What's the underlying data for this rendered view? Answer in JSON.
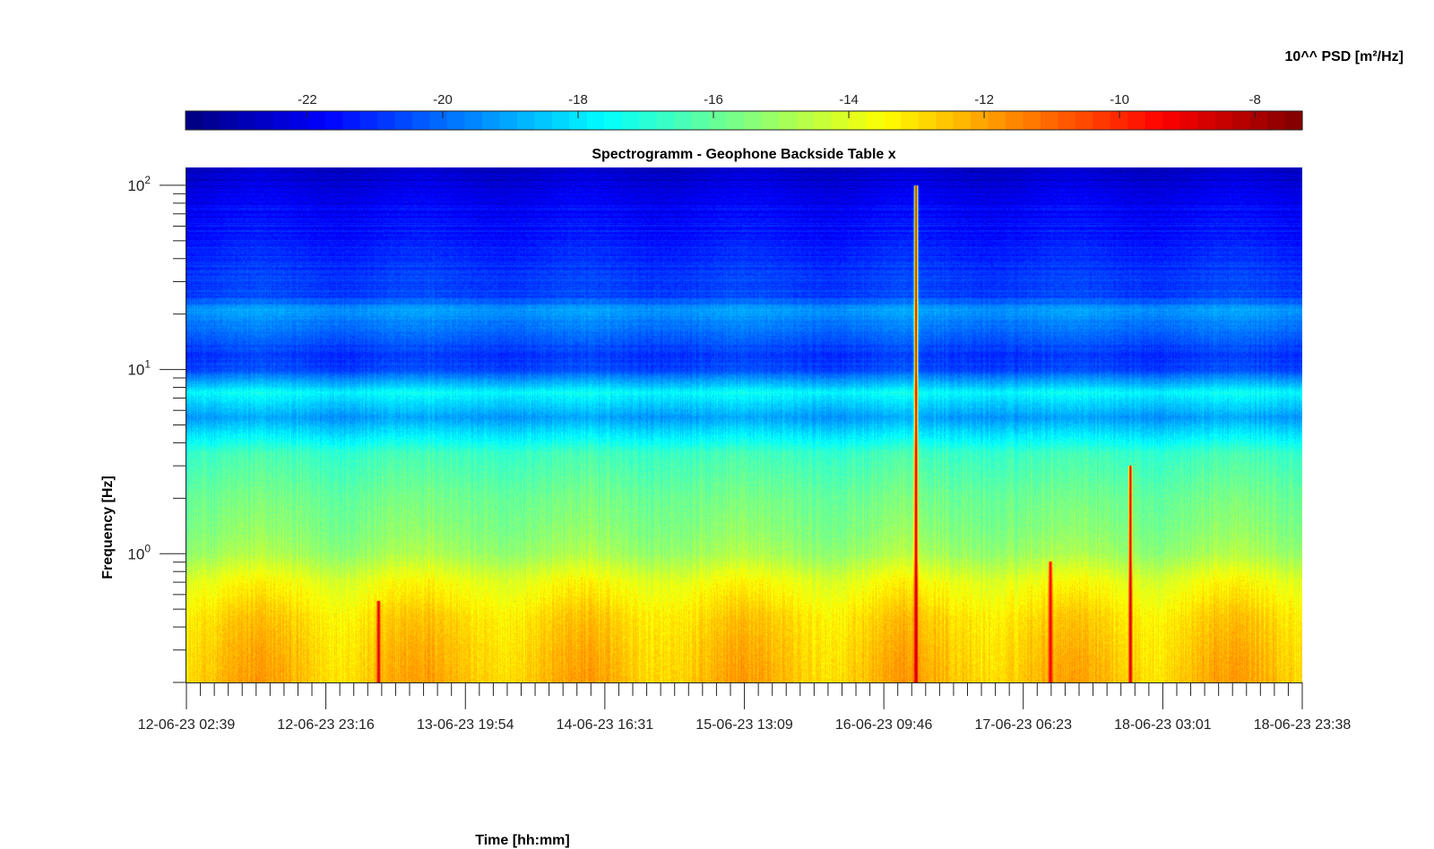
{
  "chart_data": {
    "type": "heatmap",
    "title": "Spectrogramm - Geophone Backside Table x",
    "xlabel": "Time [hh:mm]",
    "ylabel": "Frequency [Hz]",
    "colorbar_label": "10^^ PSD [m²/Hz]",
    "colormap": "jet",
    "clim": [
      -23.8,
      -7.3
    ],
    "colorbar_ticks": [
      "-22",
      "-20",
      "-18",
      "-16",
      "-14",
      "-12",
      "-10",
      "-8"
    ],
    "y_scale": "log",
    "ylim": [
      0.2,
      125
    ],
    "y_ticks": [
      {
        "base": "10",
        "exp": "2",
        "value": 100
      },
      {
        "base": "10",
        "exp": "1",
        "value": 10
      },
      {
        "base": "10",
        "exp": "0",
        "value": 1
      }
    ],
    "x_range": [
      "12-06-23 02:39",
      "18-06-23 23:38"
    ],
    "x_ticks": [
      "12-06-23 02:39",
      "12-06-23 23:16",
      "13-06-23 19:54",
      "14-06-23 16:31",
      "15-06-23 13:09",
      "16-06-23 09:46",
      "17-06-23 06:23",
      "18-06-23 03:01",
      "18-06-23 23:38"
    ],
    "band_profile": [
      {
        "freq": 125,
        "psd": -22.6
      },
      {
        "freq": 100,
        "psd": -22.3
      },
      {
        "freq": 70,
        "psd": -21.7
      },
      {
        "freq": 40,
        "psd": -21.0
      },
      {
        "freq": 25,
        "psd": -20.6
      },
      {
        "freq": 21,
        "psd": -19.2
      },
      {
        "freq": 15,
        "psd": -20.2
      },
      {
        "freq": 12,
        "psd": -20.9
      },
      {
        "freq": 10,
        "psd": -20.6
      },
      {
        "freq": 7.5,
        "psd": -17.6
      },
      {
        "freq": 5.5,
        "psd": -19.2
      },
      {
        "freq": 3.5,
        "psd": -16.6
      },
      {
        "freq": 2,
        "psd": -15.8
      },
      {
        "freq": 1.3,
        "psd": -15.4
      },
      {
        "freq": 1,
        "psd": -15.0
      },
      {
        "freq": 0.7,
        "psd": -13.7
      },
      {
        "freq": 0.45,
        "psd": -12.9
      },
      {
        "freq": 0.3,
        "psd": -12.6
      },
      {
        "freq": 0.2,
        "psd": -12.4
      }
    ],
    "events": [
      {
        "time": "13-06-23 07:00",
        "psd": -8.5,
        "fmax": 0.55
      },
      {
        "time": "16-06-23 14:28",
        "psd": -7.8,
        "fmax": 100
      },
      {
        "time": "17-06-23 10:20",
        "psd": -8.6,
        "fmax": 0.9
      },
      {
        "time": "17-06-23 22:10",
        "psd": -8.2,
        "fmax": 3.0
      }
    ],
    "grid": false
  }
}
